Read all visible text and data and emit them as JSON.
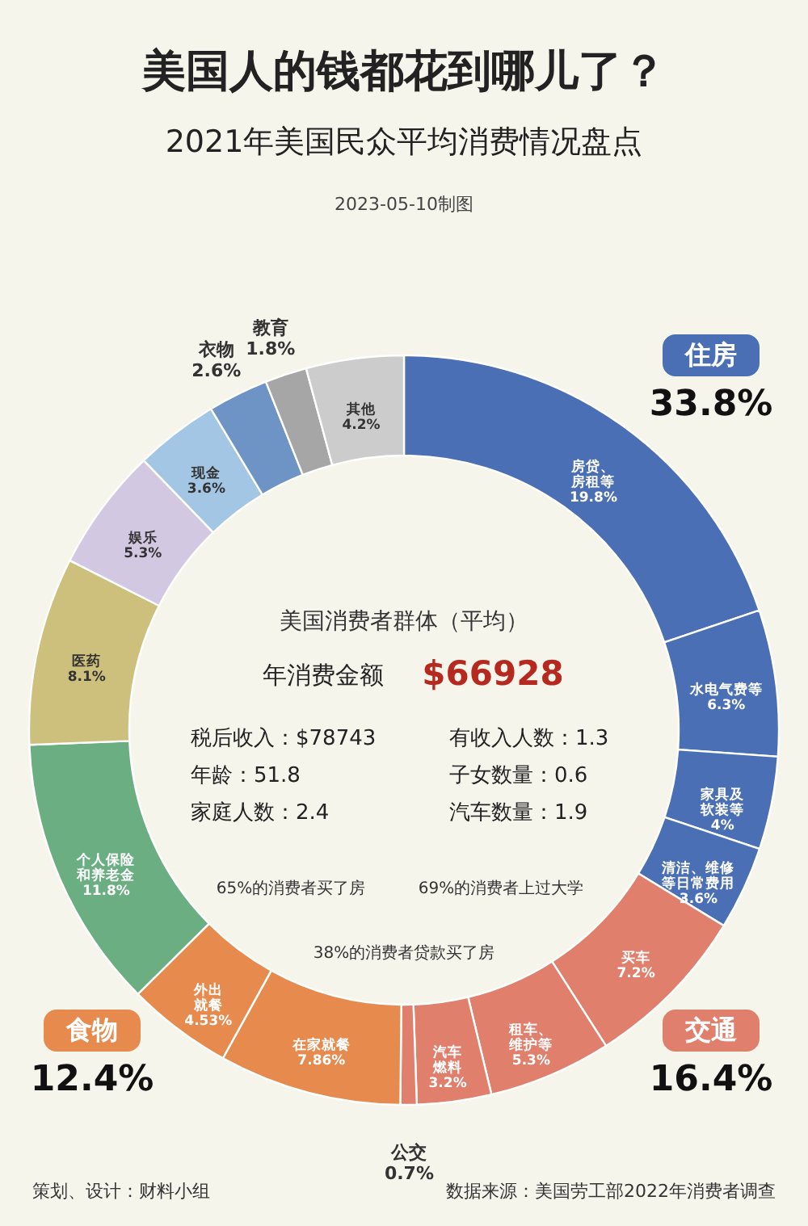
{
  "chart_data": {
    "type": "donut",
    "title": "美国人的钱都花到哪儿了？",
    "subtitle": "2021年美国民众平均消费情况盘点",
    "categories": [
      "房贷、房租等",
      "水电气费等",
      "家具及软装等",
      "清洁、维修等日常费用",
      "买车",
      "租车、维护等",
      "汽车燃料",
      "公交",
      "在家就餐",
      "外出就餐",
      "个人保险和养老金",
      "医药",
      "娱乐",
      "现金",
      "衣物",
      "教育",
      "其他"
    ],
    "values": [
      19.8,
      6.3,
      4,
      3.6,
      7.2,
      5.3,
      3.2,
      0.7,
      7.86,
      4.53,
      11.8,
      8.1,
      5.3,
      3.6,
      2.6,
      1.8,
      4.2
    ],
    "value_labels": [
      "19.8%",
      "6.3%",
      "4%",
      "3.6%",
      "7.2%",
      "5.3%",
      "3.2%",
      "0.7%",
      "7.86%",
      "4.53%",
      "11.8%",
      "8.1%",
      "5.3%",
      "3.6%",
      "2.6%",
      "1.8%",
      "4.2%"
    ],
    "colors": [
      "#4b6fb5",
      "#4b6fb5",
      "#4b6fb5",
      "#4b6fb5",
      "#e07f6c",
      "#e07f6c",
      "#e07f6c",
      "#e07f6c",
      "#e68a4e",
      "#e68a4e",
      "#6aae82",
      "#cdbf7c",
      "#d3c8e2",
      "#a3c6e4",
      "#6d94c4",
      "#a6a6a6",
      "#cccccc"
    ],
    "annotations": [
      "住房",
      "33.8%",
      "交通",
      "16.4%",
      "食物",
      "12.4%",
      "美国消费者群体（平均）",
      "年消费金额",
      "$66928",
      "税后收入：$78743",
      "有收入人数：1.3",
      "年龄：51.8",
      "子女数量：0.6",
      "家庭人数：2.4",
      "汽车数量：1.9",
      "65%的消费者买了房",
      "69%的消费者上过大学",
      "38%的消费者贷款买了房",
      "2023-05-10制图",
      "策划、设计：财料小组",
      "数据来源：美国劳工部2022年消费者调查"
    ]
  }
}
